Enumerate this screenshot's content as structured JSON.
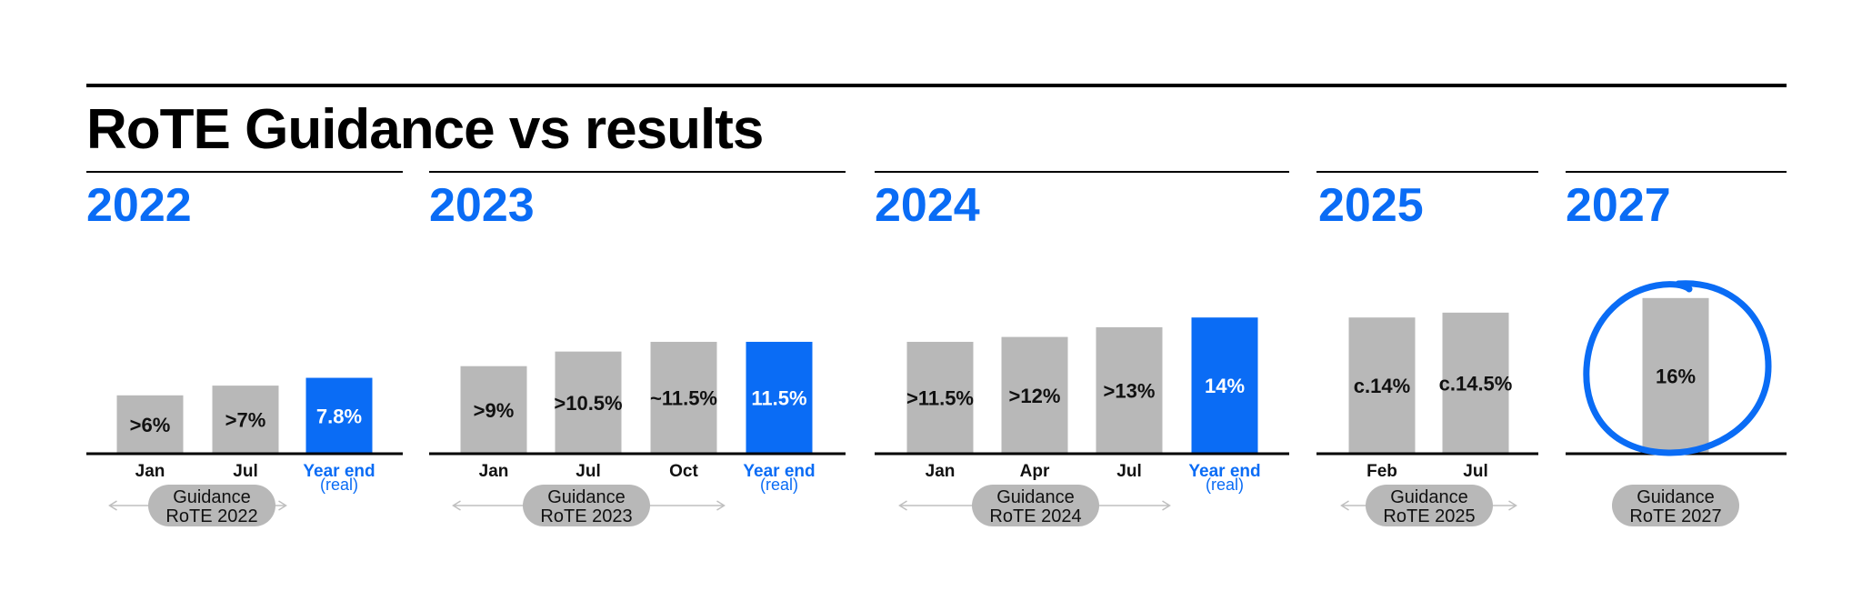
{
  "title": "RoTE Guidance vs results",
  "colors": {
    "accent": "#0a6cf5",
    "bar": "#b8b8b8",
    "text": "#000000",
    "arrow": "#bfbfbf"
  },
  "chart_data": [
    {
      "type": "bar",
      "year": "2022",
      "categories": [
        "Jan",
        "Jul",
        "Year end"
      ],
      "category_subs": [
        "",
        "",
        "(real)"
      ],
      "labels": [
        ">6%",
        ">7%",
        "7.8%"
      ],
      "values": [
        6,
        7,
        7.8
      ],
      "highlight": [
        false,
        false,
        true
      ],
      "guidance": [
        "Guidance",
        "RoTE 2022"
      ]
    },
    {
      "type": "bar",
      "year": "2023",
      "categories": [
        "Jan",
        "Jul",
        "Oct",
        "Year end"
      ],
      "category_subs": [
        "",
        "",
        "",
        "(real)"
      ],
      "labels": [
        ">9%",
        ">10.5%",
        "~11.5%",
        "11.5%"
      ],
      "values": [
        9,
        10.5,
        11.5,
        11.5
      ],
      "highlight": [
        false,
        false,
        false,
        true
      ],
      "guidance": [
        "Guidance",
        "RoTE 2023"
      ]
    },
    {
      "type": "bar",
      "year": "2024",
      "categories": [
        "Jan",
        "Apr",
        "Jul",
        "Year end"
      ],
      "category_subs": [
        "",
        "",
        "",
        "(real)"
      ],
      "labels": [
        ">11.5%",
        ">12%",
        ">13%",
        "14%"
      ],
      "values": [
        11.5,
        12,
        13,
        14
      ],
      "highlight": [
        false,
        false,
        false,
        true
      ],
      "guidance": [
        "Guidance",
        "RoTE 2024"
      ]
    },
    {
      "type": "bar",
      "year": "2025",
      "categories": [
        "Feb",
        "Jul"
      ],
      "category_subs": [
        "",
        ""
      ],
      "labels": [
        "c.14%",
        "c.14.5%"
      ],
      "values": [
        14,
        14.5
      ],
      "highlight": [
        false,
        false
      ],
      "guidance": [
        "Guidance",
        "RoTE 2025"
      ]
    },
    {
      "type": "bar",
      "year": "2027",
      "categories": [
        ""
      ],
      "category_subs": [
        ""
      ],
      "labels": [
        "16%"
      ],
      "values": [
        16
      ],
      "highlight": [
        false
      ],
      "circled": true,
      "guidance": [
        "Guidance",
        "RoTE 2027"
      ]
    }
  ]
}
